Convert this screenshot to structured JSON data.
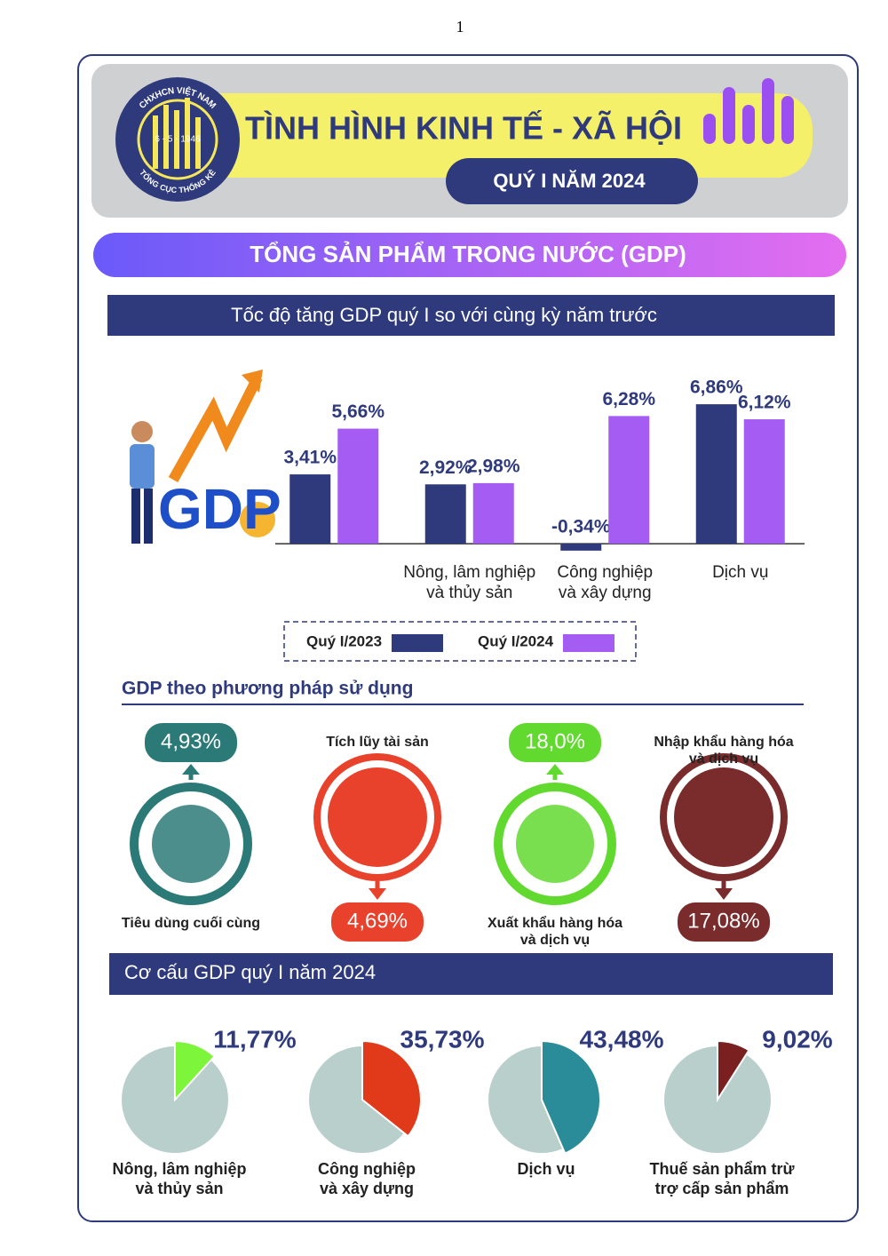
{
  "page_number": "1",
  "header": {
    "title": "TÌNH HÌNH KINH TẾ - XÃ HỘI",
    "subtitle": "QUÝ I NĂM 2024",
    "logo": {
      "top": "CHXHCN VIỆT NAM",
      "date": "6 - 5 - 1946",
      "bottom": "TỔNG CỤC THỐNG KÊ"
    }
  },
  "section_title": "TỔNG SẢN PHẨM TRONG NƯỚC (GDP)",
  "gdp_icon_label": "GDP",
  "gdp_usage": {
    "title": "GDP theo phương pháp sử dụng",
    "items": [
      {
        "label": "Tiêu dùng cuối cùng",
        "value_label": "4,93%",
        "color": "#2b7a78",
        "direction": "up"
      },
      {
        "label": "Tích lũy tài sản",
        "value_label": "4,69%",
        "color": "#e8412c",
        "direction": "down"
      },
      {
        "label": "Xuất khẩu hàng hóa\nvà dịch vụ",
        "value_label": "18,0%",
        "color": "#62d92f",
        "direction": "up"
      },
      {
        "label": "Nhập khẩu hàng hóa\nvà dịch vụ",
        "value_label": "17,08%",
        "color": "#7a2b2b",
        "direction": "down"
      }
    ]
  },
  "chart_data": [
    {
      "type": "bar",
      "title": "Tốc độ tăng GDP quý I so với cùng kỳ năm trước",
      "categories": [
        null,
        "Nông, lâm nghiệp\nvà thủy sản",
        "Công nghiệp\nvà xây dựng",
        "Dịch vụ"
      ],
      "series": [
        {
          "name": "Quý I/2023",
          "color": "#2e3a7c",
          "values": [
            3.41,
            2.92,
            -0.34,
            6.86
          ],
          "value_labels": [
            "3,41%",
            "2,92%",
            "-0,34%",
            "6,86%"
          ]
        },
        {
          "name": "Quý I/2024",
          "color": "#a45cf2",
          "values": [
            5.66,
            2.98,
            6.28,
            6.12
          ],
          "value_labels": [
            "5,66%",
            "2,98%",
            "6,28%",
            "6,12%"
          ]
        }
      ],
      "ylim": [
        -1,
        8
      ]
    },
    {
      "type": "pie",
      "title": "Cơ cấu GDP quý I năm 2024",
      "categories": [
        "Nông, lâm nghiệp\nvà thủy sản",
        "Công nghiệp\nvà xây dựng",
        "Dịch vụ",
        "Thuế sản phẩm trừ\ntrợ cấp sản phẩm"
      ],
      "values": [
        11.77,
        35.73,
        43.48,
        9.02
      ],
      "value_labels": [
        "11,77%",
        "35,73%",
        "43,48%",
        "9,02%"
      ],
      "colors": [
        "#7cf53a",
        "#e03a1a",
        "#2a8c99",
        "#7a2020"
      ],
      "rest_color": "#b9cfcb"
    }
  ]
}
